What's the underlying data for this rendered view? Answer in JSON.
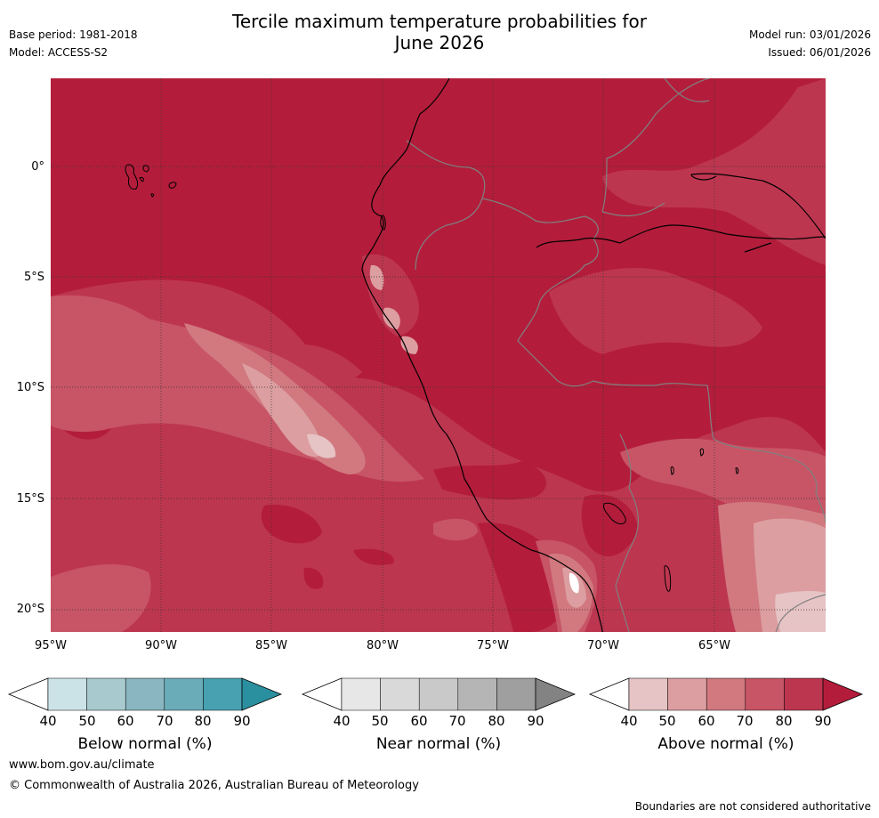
{
  "header": {
    "title_line1": "Tercile maximum temperature probabilities for",
    "title_line2": "June 2026",
    "base_period": "Base period: 1981-2018",
    "model": "Model: ACCESS-S2",
    "model_run": "Model run: 03/01/2026",
    "issued": "Issued: 06/01/2026"
  },
  "map": {
    "lat_labels": [
      "0°",
      "5°S",
      "10°S",
      "15°S",
      "20°S"
    ],
    "lon_labels": [
      "95°W",
      "90°W",
      "85°W",
      "80°W",
      "75°W",
      "70°W",
      "65°W"
    ],
    "colors": {
      "p90": "#b31d3b",
      "p80": "#bd3650",
      "p70": "#c75566",
      "p60": "#d1797f",
      "p50": "#dc9ea1",
      "p40": "#e6c3c4",
      "coast": "#000000",
      "border": "#808080",
      "grid": "#333333"
    }
  },
  "colorbars": [
    {
      "title": "Below normal (%)",
      "ticks": [
        "40",
        "50",
        "60",
        "70",
        "80",
        "90"
      ],
      "colors": [
        "#ffffff",
        "#cbe3e7",
        "#a8c9ce",
        "#89b6c0",
        "#6aacb8",
        "#47a1b0",
        "#2a8f9f"
      ]
    },
    {
      "title": "Near normal (%)",
      "ticks": [
        "40",
        "50",
        "60",
        "70",
        "80",
        "90"
      ],
      "colors": [
        "#ffffff",
        "#e7e7e7",
        "#d9d9d9",
        "#c9c9c9",
        "#b5b5b5",
        "#9f9f9f",
        "#838383"
      ]
    },
    {
      "title": "Above normal (%)",
      "ticks": [
        "40",
        "50",
        "60",
        "70",
        "80",
        "90"
      ],
      "colors": [
        "#ffffff",
        "#e6c3c4",
        "#dc9ea1",
        "#d1797f",
        "#c75566",
        "#bd3650",
        "#b31d3b"
      ]
    }
  ],
  "footer": {
    "website": "www.bom.gov.au/climate",
    "copyright": "© Commonwealth of Australia 2026, Australian Bureau of Meteorology",
    "disclaimer": "Boundaries are not considered authoritative"
  }
}
